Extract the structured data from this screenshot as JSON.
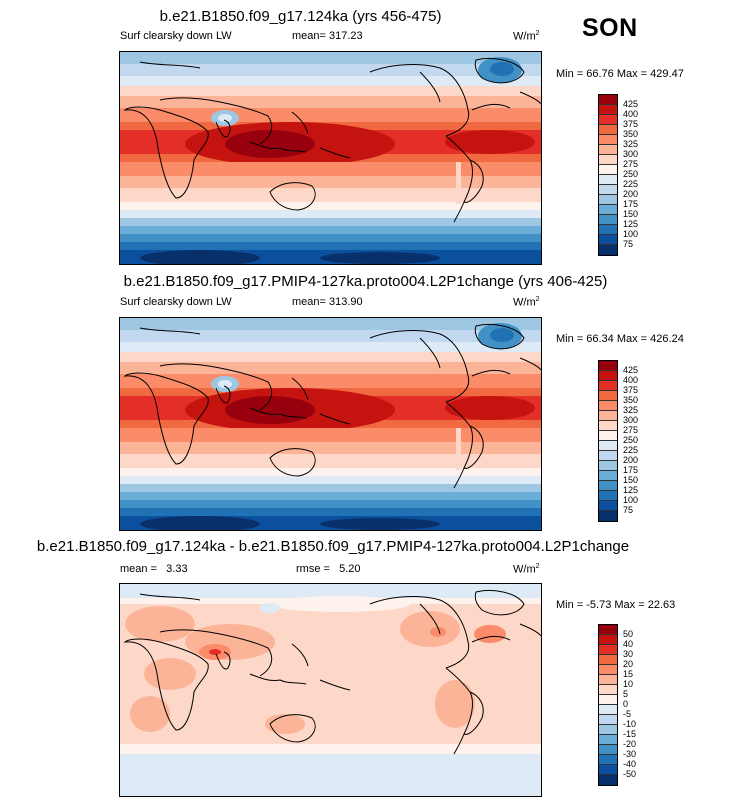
{
  "season": "SON",
  "panels": [
    {
      "title": "b.e21.B1850.f09_g17.124ka (yrs 456-475)",
      "variable": "Surf clearsky down LW",
      "mean": "mean= 317.23",
      "rmse": "",
      "units": "W/m",
      "units_exp": "2",
      "minmax": "Min =  66.76 Max = 429.47",
      "levels": [
        "425",
        "400",
        "375",
        "350",
        "325",
        "300",
        "275",
        "250",
        "225",
        "200",
        "175",
        "150",
        "125",
        "100",
        "75"
      ],
      "colors": [
        "#99000d",
        "#c5140f",
        "#e32f27",
        "#f16941",
        "#fb8c6a",
        "#fcb499",
        "#fdd7c7",
        "#fef2ec",
        "#deebf7",
        "#c1d8ef",
        "#9dc7e2",
        "#6aaed7",
        "#4191c6",
        "#2171b5",
        "#0a509c",
        "#08306b"
      ]
    },
    {
      "title": "b.e21.B1850.f09_g17.PMIP4-127ka.proto004.L2P1change (yrs 406-425)",
      "variable": "Surf clearsky down LW",
      "mean": "mean= 313.90",
      "rmse": "",
      "units": "W/m",
      "units_exp": "2",
      "minmax": "Min =  66.34 Max = 426.24",
      "levels": [
        "425",
        "400",
        "375",
        "350",
        "325",
        "300",
        "275",
        "250",
        "225",
        "200",
        "175",
        "150",
        "125",
        "100",
        "75"
      ],
      "colors": [
        "#99000d",
        "#c5140f",
        "#e32f27",
        "#f16941",
        "#fb8c6a",
        "#fcb499",
        "#fdd7c7",
        "#fef2ec",
        "#deebf7",
        "#c1d8ef",
        "#9dc7e2",
        "#6aaed7",
        "#4191c6",
        "#2171b5",
        "#0a509c",
        "#08306b"
      ]
    },
    {
      "title": "b.e21.B1850.f09_g17.124ka - b.e21.B1850.f09_g17.PMIP4-127ka.proto004.L2P1change",
      "variable": "",
      "mean": "mean =   3.33",
      "rmse": "rmse =   5.20",
      "units": "W/m",
      "units_exp": "2",
      "minmax": "Min =  -5.73 Max =  22.63",
      "levels": [
        "50",
        "40",
        "30",
        "20",
        "15",
        "10",
        "5",
        "0",
        "-5",
        "-10",
        "-15",
        "-20",
        "-30",
        "-40",
        "-50"
      ],
      "colors": [
        "#99000d",
        "#c5140f",
        "#e32f27",
        "#f16941",
        "#fb8c6a",
        "#fcb499",
        "#fdd7c7",
        "#fef2ec",
        "#deebf7",
        "#c1d8ef",
        "#9dc7e2",
        "#6aaed7",
        "#4191c6",
        "#2171b5",
        "#0a509c",
        "#08306b"
      ]
    }
  ]
}
